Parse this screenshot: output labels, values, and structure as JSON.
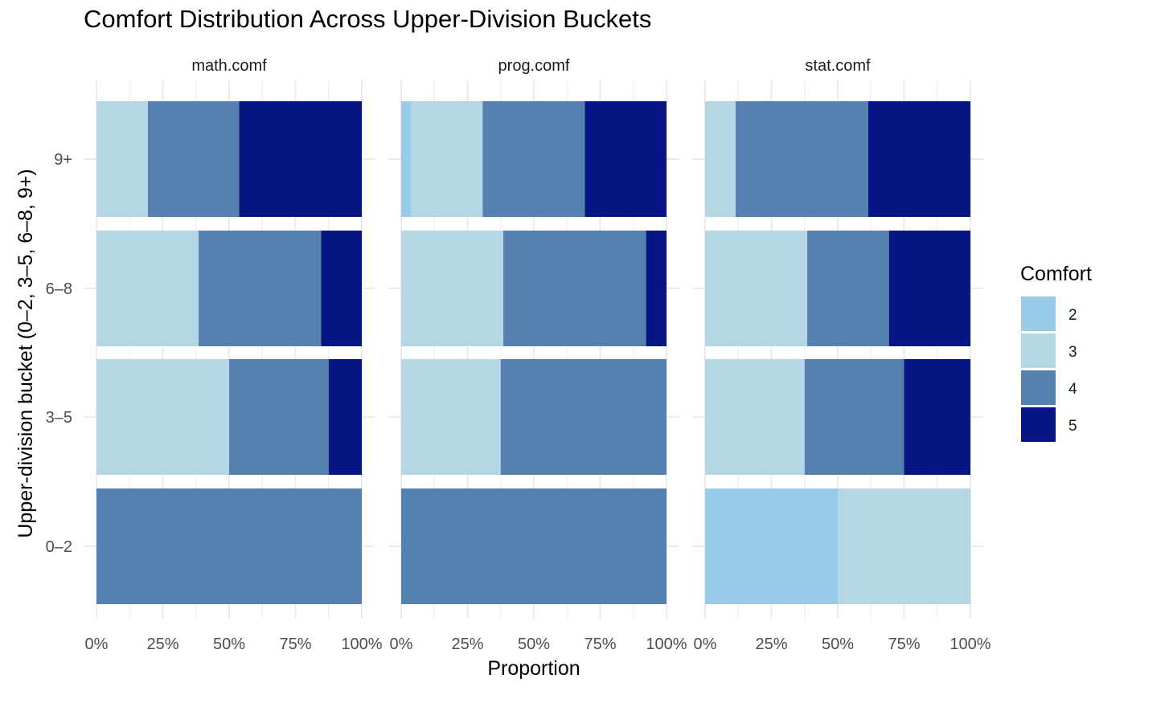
{
  "chart_data": {
    "type": "bar",
    "orientation": "horizontal",
    "stacked": "proportion",
    "title": "Comfort Distribution Across Upper-Division Buckets",
    "xlabel": "Proportion",
    "ylabel": "Upper-division bucket (0–2, 3–5, 6–8, 9+)",
    "xlim": [
      0,
      1
    ],
    "x_ticks": [
      "0%",
      "25%",
      "50%",
      "75%",
      "100%"
    ],
    "categories": [
      "0–2",
      "3–5",
      "6–8",
      "9+"
    ],
    "legend": {
      "title": "Comfort",
      "position": "right",
      "levels": [
        "2",
        "3",
        "4",
        "5"
      ],
      "colors": [
        "#97cbe8",
        "#b5d7e3",
        "#5481b0",
        "#071682"
      ]
    },
    "grid": true,
    "facets": [
      {
        "name": "math.comf",
        "values": {
          "0–2": [
            0,
            0,
            1.0,
            0
          ],
          "3–5": [
            0,
            0.5,
            0.375,
            0.125
          ],
          "6–8": [
            0,
            0.385,
            0.462,
            0.153
          ],
          "9+": [
            0,
            0.194,
            0.344,
            0.462
          ]
        }
      },
      {
        "name": "prog.comf",
        "values": {
          "0–2": [
            0,
            0,
            1.0,
            0
          ],
          "3–5": [
            0,
            0.375,
            0.625,
            0
          ],
          "6–8": [
            0,
            0.385,
            0.538,
            0.077
          ],
          "9+": [
            0.038,
            0.269,
            0.385,
            0.308
          ]
        }
      },
      {
        "name": "stat.comf",
        "values": {
          "0–2": [
            0.5,
            0.5,
            0,
            0
          ],
          "3–5": [
            0,
            0.375,
            0.375,
            0.25
          ],
          "6–8": [
            0,
            0.385,
            0.308,
            0.307
          ],
          "9+": [
            0,
            0.115,
            0.5,
            0.385
          ]
        }
      }
    ]
  }
}
